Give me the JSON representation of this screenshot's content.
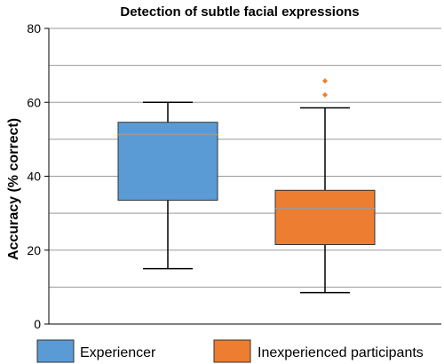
{
  "chart_data": {
    "type": "box",
    "title": "Detection of subtle facial expressions",
    "ylabel": "Accuracy (% correct)",
    "ylim": [
      0,
      80
    ],
    "yticks": [
      "0",
      "20",
      "40",
      "60",
      "80"
    ],
    "grid": true,
    "legend_position": "bottom",
    "series": [
      {
        "name": "Experiencer",
        "color": "#5b9bd5",
        "whisker_low": 15,
        "q1": 33.5,
        "median": 51.3,
        "q3": 54.6,
        "whisker_high": 60,
        "outliers": []
      },
      {
        "name": "Inexperienced participants",
        "color": "#ed7d31",
        "whisker_low": 8.5,
        "q1": 21.5,
        "median": 31.3,
        "q3": 36.2,
        "whisker_high": 58.5,
        "outliers": [
          62,
          65.8
        ]
      }
    ]
  }
}
